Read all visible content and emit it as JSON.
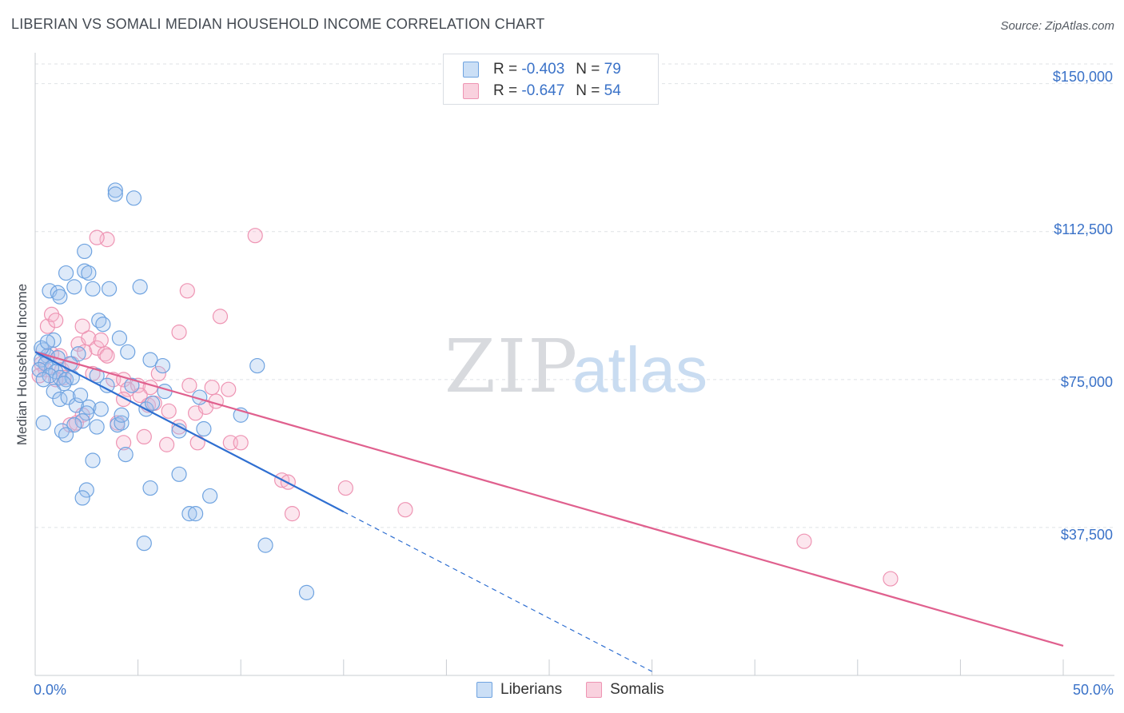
{
  "title": "LIBERIAN VS SOMALI MEDIAN HOUSEHOLD INCOME CORRELATION CHART",
  "source": "Source: ZipAtlas.com",
  "watermark": {
    "zip": "ZIP",
    "atlas": "atlas"
  },
  "colors": {
    "liberians": "#6fa3e0",
    "liberians_fill": "rgba(160,196,238,0.35)",
    "liberians_line": "#2f6fd1",
    "somalis": "#ee94b3",
    "somalis_fill": "rgba(246,184,205,0.35)",
    "somalis_line": "#e0608e",
    "accent_text": "#3a72c8"
  },
  "legend": {
    "rows": [
      {
        "r_label": "R =",
        "r_value": "-0.403",
        "n_label": "N =",
        "n_value": "79"
      },
      {
        "r_label": "R =",
        "r_value": "-0.647",
        "n_label": "N =",
        "n_value": "54"
      }
    ]
  },
  "bottom_legend": {
    "liberians": "Liberians",
    "somalis": "Somalis"
  },
  "chart_data": {
    "type": "scatter",
    "title": "LIBERIAN VS SOMALI MEDIAN HOUSEHOLD INCOME CORRELATION CHART",
    "xlabel": "",
    "ylabel": "Median Household Income",
    "xlim": [
      0,
      50
    ],
    "ylim": [
      0,
      155000
    ],
    "x_tick_labels": [
      "0.0%",
      "50.0%"
    ],
    "y_ticks": [
      37500,
      75000,
      112500,
      150000
    ],
    "y_tick_labels": [
      "$37,500",
      "$75,000",
      "$112,500",
      "$150,000"
    ],
    "grid": "horizontal dashed",
    "legend_position": "top-center",
    "series": [
      {
        "name": "Liberians",
        "r": -0.403,
        "n": 79,
        "trend": {
          "x0": 0,
          "y0": 82000,
          "x1": 15,
          "y1": 41500,
          "dashed_to_x": 30,
          "dashed_to_y": 1000
        },
        "points": [
          [
            0.4,
            82500
          ],
          [
            0.6,
            81000
          ],
          [
            0.3,
            80000
          ],
          [
            0.5,
            79000
          ],
          [
            0.8,
            78000
          ],
          [
            0.2,
            77500
          ],
          [
            1.0,
            77000
          ],
          [
            0.7,
            76000
          ],
          [
            1.2,
            75500
          ],
          [
            0.4,
            75000
          ],
          [
            1.5,
            75000
          ],
          [
            1.8,
            75500
          ],
          [
            1.4,
            74000
          ],
          [
            0.9,
            72000
          ],
          [
            1.2,
            70000
          ],
          [
            1.6,
            70500
          ],
          [
            2.0,
            68500
          ],
          [
            2.6,
            68000
          ],
          [
            3.2,
            67500
          ],
          [
            2.5,
            66500
          ],
          [
            2.3,
            64500
          ],
          [
            1.9,
            63500
          ],
          [
            3.0,
            63000
          ],
          [
            4.0,
            63500
          ],
          [
            4.2,
            64000
          ],
          [
            1.3,
            62000
          ],
          [
            1.5,
            61000
          ],
          [
            0.4,
            64000
          ],
          [
            0.9,
            85000
          ],
          [
            2.1,
            81500
          ],
          [
            1.9,
            98500
          ],
          [
            2.4,
            102500
          ],
          [
            2.6,
            102000
          ],
          [
            1.5,
            102000
          ],
          [
            0.7,
            97500
          ],
          [
            1.1,
            97000
          ],
          [
            1.2,
            96000
          ],
          [
            2.8,
            98000
          ],
          [
            3.6,
            98000
          ],
          [
            5.1,
            98500
          ],
          [
            3.1,
            90000
          ],
          [
            3.3,
            89000
          ],
          [
            4.1,
            85500
          ],
          [
            4.5,
            82000
          ],
          [
            5.6,
            80000
          ],
          [
            6.2,
            78500
          ],
          [
            3.5,
            73500
          ],
          [
            5.4,
            67500
          ],
          [
            5.7,
            69000
          ],
          [
            4.2,
            66000
          ],
          [
            8.0,
            70500
          ],
          [
            7.0,
            62000
          ],
          [
            8.2,
            62500
          ],
          [
            10.0,
            66000
          ],
          [
            2.8,
            54500
          ],
          [
            4.4,
            56000
          ],
          [
            7.0,
            51000
          ],
          [
            2.5,
            47000
          ],
          [
            5.6,
            47500
          ],
          [
            8.5,
            45500
          ],
          [
            2.3,
            45000
          ],
          [
            7.5,
            41000
          ],
          [
            7.8,
            41000
          ],
          [
            5.3,
            33500
          ],
          [
            11.2,
            33000
          ],
          [
            13.2,
            21000
          ],
          [
            3.9,
            123000
          ],
          [
            3.9,
            122000
          ],
          [
            4.8,
            121000
          ],
          [
            2.4,
            107500
          ],
          [
            10.8,
            78500
          ],
          [
            0.3,
            83000
          ],
          [
            0.6,
            84500
          ],
          [
            1.1,
            80500
          ],
          [
            1.7,
            79000
          ],
          [
            3.0,
            76000
          ],
          [
            2.2,
            71000
          ],
          [
            6.3,
            72000
          ],
          [
            4.7,
            73500
          ]
        ]
      },
      {
        "name": "Somalis",
        "r": -0.647,
        "n": 54,
        "trend": {
          "x0": 0,
          "y0": 82000,
          "x1": 50,
          "y1": 7500
        },
        "points": [
          [
            0.3,
            79000
          ],
          [
            0.5,
            77500
          ],
          [
            0.2,
            76000
          ],
          [
            0.8,
            81500
          ],
          [
            1.2,
            81000
          ],
          [
            1.3,
            77500
          ],
          [
            1.4,
            75500
          ],
          [
            1.0,
            75000
          ],
          [
            2.1,
            84000
          ],
          [
            2.6,
            85500
          ],
          [
            1.8,
            79000
          ],
          [
            0.6,
            88500
          ],
          [
            0.8,
            91500
          ],
          [
            1.0,
            90000
          ],
          [
            2.4,
            82000
          ],
          [
            3.0,
            83000
          ],
          [
            3.4,
            81500
          ],
          [
            3.2,
            85000
          ],
          [
            3.5,
            81000
          ],
          [
            2.8,
            76500
          ],
          [
            3.8,
            75000
          ],
          [
            4.3,
            75000
          ],
          [
            4.5,
            72500
          ],
          [
            5.0,
            73500
          ],
          [
            5.6,
            73000
          ],
          [
            6.0,
            76500
          ],
          [
            5.1,
            71000
          ],
          [
            4.3,
            70000
          ],
          [
            5.5,
            68500
          ],
          [
            5.8,
            69000
          ],
          [
            6.5,
            67000
          ],
          [
            7.0,
            63000
          ],
          [
            7.5,
            73500
          ],
          [
            7.8,
            66500
          ],
          [
            8.3,
            68000
          ],
          [
            8.6,
            73000
          ],
          [
            8.8,
            69500
          ],
          [
            9.4,
            72500
          ],
          [
            9.5,
            59000
          ],
          [
            10.0,
            59000
          ],
          [
            6.4,
            58500
          ],
          [
            5.3,
            60500
          ],
          [
            7.9,
            59000
          ],
          [
            4.3,
            59000
          ],
          [
            4.0,
            64000
          ],
          [
            2.3,
            66000
          ],
          [
            1.7,
            63500
          ],
          [
            2.0,
            64000
          ],
          [
            2.3,
            88500
          ],
          [
            3.5,
            110500
          ],
          [
            3.0,
            111000
          ],
          [
            10.7,
            111500
          ],
          [
            9.0,
            91000
          ],
          [
            7.0,
            87000
          ]
        ],
        "extra_points": [
          [
            7.4,
            97500
          ],
          [
            12.0,
            49500
          ],
          [
            12.3,
            49000
          ],
          [
            12.5,
            41000
          ],
          [
            15.1,
            47500
          ],
          [
            18.0,
            42000
          ],
          [
            37.4,
            34000
          ],
          [
            41.6,
            24500
          ]
        ]
      }
    ]
  },
  "ticks": {
    "x_left": "0.0%",
    "x_right": "50.0%",
    "y": [
      "$150,000",
      "$112,500",
      "$75,000",
      "$37,500"
    ]
  }
}
